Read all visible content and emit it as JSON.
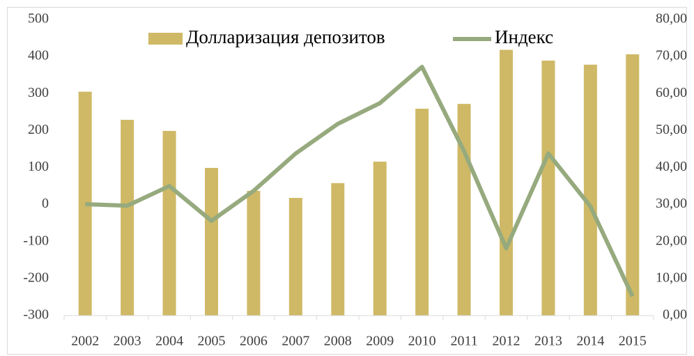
{
  "chart_data": {
    "type": "bar_line",
    "categories": [
      "2002",
      "2003",
      "2004",
      "2005",
      "2006",
      "2007",
      "2008",
      "2009",
      "2010",
      "2011",
      "2012",
      "2013",
      "2014",
      "2015"
    ],
    "series": [
      {
        "name": "Долларизация депозитов",
        "type": "bar",
        "axis": "y2",
        "color": "#cfb966",
        "values": [
          60.5,
          52.9,
          49.9,
          39.9,
          33.7,
          31.8,
          35.8,
          41.6,
          55.9,
          57.2,
          71.8,
          68.9,
          67.8,
          70.6
        ]
      },
      {
        "name": "Индекс",
        "type": "line",
        "axis": "y",
        "color": "#96aa7e",
        "values": [
          1,
          -3,
          50,
          -44,
          37,
          138,
          218,
          274,
          372,
          144,
          -118,
          138,
          -5,
          -248
        ]
      }
    ],
    "ylim": [
      -300,
      500
    ],
    "yticks": [
      -300,
      -200,
      -100,
      0,
      100,
      200,
      300,
      400,
      500
    ],
    "y2lim": [
      0,
      80
    ],
    "y2ticks": [
      {
        "value": 0,
        "label": "0,00"
      },
      {
        "value": 10,
        "label": "10,00"
      },
      {
        "value": 20,
        "label": "20,00"
      },
      {
        "value": 30,
        "label": "30,00"
      },
      {
        "value": 40,
        "label": "40,00"
      },
      {
        "value": 50,
        "label": "50,00"
      },
      {
        "value": 60,
        "label": "60,00"
      },
      {
        "value": 70,
        "label": "70,00"
      },
      {
        "value": 80,
        "label": "80,00"
      }
    ],
    "legend": "top"
  }
}
